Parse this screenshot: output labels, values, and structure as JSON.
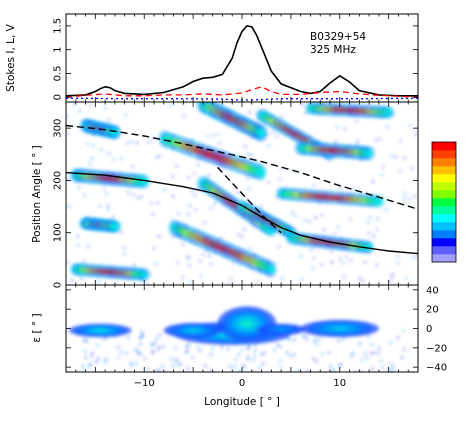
{
  "chart_data": [
    {
      "type": "line",
      "panel": "stokes-profile",
      "annotation": [
        "B0329+54",
        "325 MHz"
      ],
      "ylabel": "Stokes I, L, V",
      "xlim": [
        -18,
        18
      ],
      "ylim": [
        -0.1,
        1.75
      ],
      "yticks": [
        "0",
        "0.5",
        "1",
        "1.5"
      ],
      "ytick_values": [
        0,
        0.5,
        1,
        1.5
      ],
      "series": [
        {
          "style": "solid",
          "color": "#000000",
          "x": [
            -18,
            -16,
            -15,
            -14.5,
            -14,
            -13.5,
            -13,
            -12,
            -10,
            -8,
            -6,
            -5,
            -4,
            -3,
            -2,
            -1,
            -0.5,
            0,
            0.5,
            1,
            1.5,
            2,
            3,
            4,
            6,
            7,
            8,
            9,
            10,
            11,
            12,
            14,
            16,
            18
          ],
          "values": [
            0.03,
            0.05,
            0.12,
            0.18,
            0.22,
            0.2,
            0.14,
            0.08,
            0.06,
            0.1,
            0.22,
            0.33,
            0.4,
            0.42,
            0.48,
            0.82,
            1.15,
            1.38,
            1.5,
            1.48,
            1.3,
            1.05,
            0.55,
            0.28,
            0.12,
            0.08,
            0.12,
            0.3,
            0.45,
            0.32,
            0.14,
            0.05,
            0.03,
            0.03
          ]
        },
        {
          "style": "dashed",
          "color": "#ff0000",
          "x": [
            -18,
            -16,
            -14,
            -12,
            -10,
            -8,
            -6,
            -4,
            -2,
            0,
            1,
            2,
            3,
            4,
            6,
            8,
            10,
            12,
            14,
            18
          ],
          "values": [
            0.0,
            0.04,
            0.07,
            0.03,
            0.03,
            0.05,
            0.05,
            0.07,
            0.05,
            0.09,
            0.16,
            0.22,
            0.12,
            0.06,
            0.06,
            0.1,
            0.12,
            0.07,
            0.04,
            0.0
          ]
        },
        {
          "style": "dotted",
          "color": "#0000ff",
          "x": [
            -18,
            -12,
            -6,
            -2,
            0,
            2,
            4,
            8,
            12,
            18
          ],
          "values": [
            -0.02,
            -0.03,
            -0.03,
            -0.04,
            -0.06,
            -0.05,
            -0.03,
            -0.03,
            -0.03,
            -0.02
          ]
        }
      ]
    },
    {
      "type": "heatmap",
      "panel": "position-angle",
      "ylabel": "Position Angle [ ° ]",
      "xlim": [
        -18,
        18
      ],
      "ylim": [
        0,
        350
      ],
      "yticks": [
        "0",
        "100",
        "200",
        "300"
      ],
      "ytick_values": [
        0,
        100,
        200,
        300
      ],
      "colorbar_colors": [
        "#a0a0ff",
        "#6060ff",
        "#0000ff",
        "#0080ff",
        "#00c0ff",
        "#00ffff",
        "#00ffa0",
        "#00ff40",
        "#80ff00",
        "#c0ff00",
        "#ffff00",
        "#ffc000",
        "#ff8000",
        "#ff4000",
        "#ff0000"
      ],
      "tracks": [
        {
          "x": [
            -16,
            -13
          ],
          "y": [
            305,
            292
          ],
          "w": 2.2
        },
        {
          "x": [
            -8,
            2
          ],
          "y": [
            280,
            215
          ],
          "w": 2.6
        },
        {
          "x": [
            -4,
            2
          ],
          "y": [
            345,
            290
          ],
          "w": 2.6
        },
        {
          "x": [
            2,
            9
          ],
          "y": [
            325,
            250
          ],
          "w": 2.0
        },
        {
          "x": [
            6,
            13
          ],
          "y": [
            262,
            252
          ],
          "w": 2.2
        },
        {
          "x": [
            7,
            15
          ],
          "y": [
            338,
            330
          ],
          "w": 2.0
        },
        {
          "x": [
            -17,
            -10
          ],
          "y": [
            210,
            198
          ],
          "w": 2.2
        },
        {
          "x": [
            -4,
            3
          ],
          "y": [
            195,
            105
          ],
          "w": 2.2
        },
        {
          "x": [
            0,
            5
          ],
          "y": [
            150,
            100
          ],
          "w": 2.0
        },
        {
          "x": [
            4,
            14
          ],
          "y": [
            175,
            160
          ],
          "w": 2.0
        },
        {
          "x": [
            -16,
            -13
          ],
          "y": [
            118,
            112
          ],
          "w": 2.0
        },
        {
          "x": [
            -7,
            3
          ],
          "y": [
            110,
            30
          ],
          "w": 2.6
        },
        {
          "x": [
            5,
            13
          ],
          "y": [
            90,
            72
          ],
          "w": 2.0
        },
        {
          "x": [
            -17,
            -10
          ],
          "y": [
            30,
            20
          ],
          "w": 2.0
        }
      ],
      "curves": [
        {
          "style": "solid",
          "x": [
            -18,
            -14,
            -10,
            -6,
            -3,
            0,
            2,
            4,
            6,
            9,
            12,
            15,
            18
          ],
          "y": [
            215,
            210,
            200,
            188,
            176,
            152,
            130,
            110,
            95,
            82,
            73,
            65,
            60
          ]
        },
        {
          "style": "dashed",
          "x": [
            -18,
            -14,
            -10,
            -6,
            -2,
            0,
            2,
            6,
            10,
            14,
            18
          ],
          "y": [
            305,
            297,
            285,
            270,
            253,
            245,
            236,
            215,
            190,
            168,
            145
          ]
        },
        {
          "style": "dashed",
          "x": [
            -2.5,
            0,
            2.5,
            4
          ],
          "y": [
            225,
            175,
            125,
            100
          ]
        }
      ]
    },
    {
      "type": "heatmap",
      "panel": "ellipticity",
      "ylabel": "ε [ ° ]",
      "xlabel": "Longitude [ ° ]",
      "xlim": [
        -18,
        18
      ],
      "ylim": [
        -45,
        45
      ],
      "xticks": [
        "−10",
        "0",
        "10"
      ],
      "xtick_values": [
        -10,
        0,
        10
      ],
      "yticks": [
        "40",
        "20",
        "0",
        "−20",
        "−40"
      ],
      "ytick_values": [
        40,
        20,
        0,
        -20,
        -40
      ],
      "blobs": [
        {
          "x": -14.5,
          "y": -2,
          "rx": 2.0,
          "ry": 3,
          "v": 0.95
        },
        {
          "x": -14.5,
          "y": -2,
          "rx": 3.2,
          "ry": 7,
          "v": 0.45
        },
        {
          "x": -2.5,
          "y": -5,
          "rx": 3.5,
          "ry": 4,
          "v": 1.0
        },
        {
          "x": -1,
          "y": -5,
          "rx": 6,
          "ry": 12,
          "v": 0.5
        },
        {
          "x": 0.5,
          "y": 5,
          "rx": 3,
          "ry": 18,
          "v": 0.5
        },
        {
          "x": -5,
          "y": -2,
          "rx": 3,
          "ry": 8,
          "v": 0.4
        },
        {
          "x": 10,
          "y": 0,
          "rx": 2.4,
          "ry": 4,
          "v": 1.0
        },
        {
          "x": 10,
          "y": 0,
          "rx": 4,
          "ry": 9,
          "v": 0.4
        },
        {
          "x": 4,
          "y": -1,
          "rx": 2.5,
          "ry": 6,
          "v": 0.3
        }
      ]
    }
  ]
}
